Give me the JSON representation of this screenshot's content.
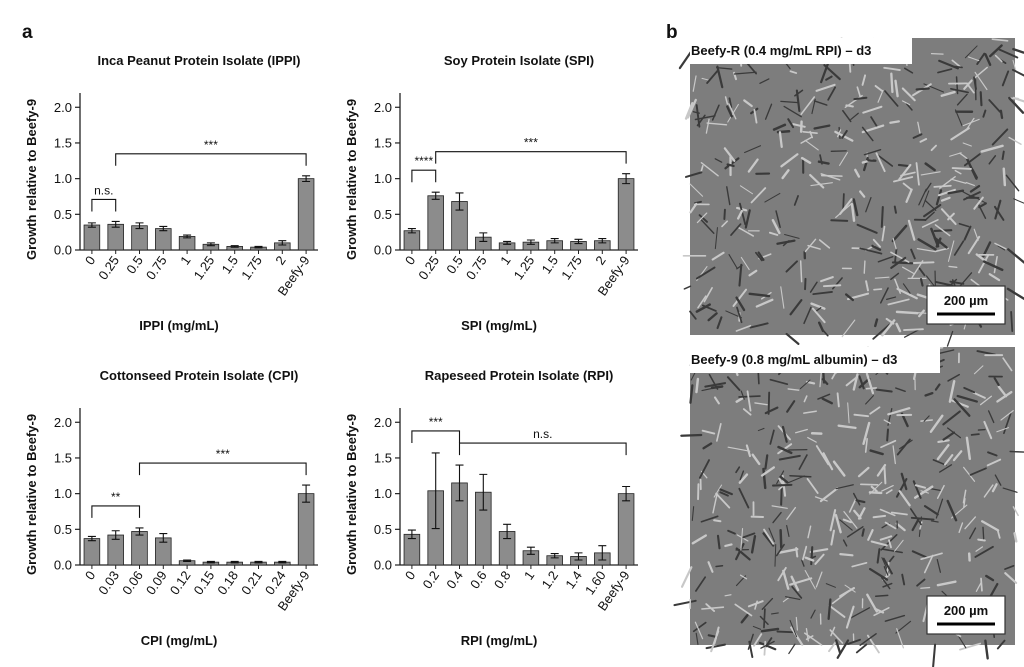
{
  "panels": {
    "a": "a",
    "b": "b"
  },
  "chart_data": [
    {
      "type": "bar",
      "title": "Inca Peanut Protein Isolate (IPPI)",
      "y_label": "Growth relative to Beefy-9",
      "x_label": "IPPI (mg/mL)",
      "categories": [
        "0",
        "0.25",
        "0.5",
        "0.75",
        "1",
        "1.25",
        "1.5",
        "1.75",
        "2",
        "Beefy-9"
      ],
      "values": [
        0.35,
        0.36,
        0.34,
        0.3,
        0.19,
        0.08,
        0.05,
        0.04,
        0.1,
        1.0
      ],
      "errors": [
        0.03,
        0.04,
        0.04,
        0.03,
        0.02,
        0.02,
        0.01,
        0.01,
        0.03,
        0.04
      ],
      "color": "#8c8c8c",
      "ylim": [
        0,
        2.2
      ],
      "yticks": [
        {
          "value": 0,
          "label": "0.0"
        },
        0.5,
        {
          "value": 1,
          "label": "1.0"
        },
        1.5,
        {
          "value": 2,
          "label": "2.0"
        }
      ],
      "annotations": [
        {
          "text": "n.s.",
          "from": "0",
          "to": "0.25"
        },
        {
          "text": "***",
          "from": "0.25",
          "to": "Beefy-9"
        }
      ]
    },
    {
      "type": "bar",
      "title": "Soy Protein Isolate (SPI)",
      "y_label": "Growth relative to Beefy-9",
      "x_label": "SPI (mg/mL)",
      "categories": [
        "0",
        "0.25",
        "0.5",
        "0.75",
        "1",
        "1.25",
        "1.5",
        "1.75",
        "2",
        "Beefy-9"
      ],
      "values": [
        0.27,
        0.76,
        0.68,
        0.18,
        0.1,
        0.11,
        0.13,
        0.12,
        0.13,
        1.0
      ],
      "errors": [
        0.03,
        0.05,
        0.12,
        0.06,
        0.02,
        0.03,
        0.03,
        0.03,
        0.03,
        0.07
      ],
      "color": "#8c8c8c",
      "ylim": [
        0,
        2.2
      ],
      "yticks": [
        {
          "value": 0,
          "label": "0.0"
        },
        0.5,
        {
          "value": 1,
          "label": "1.0"
        },
        1.5,
        {
          "value": 2,
          "label": "2.0"
        }
      ],
      "annotations": [
        {
          "text": "****",
          "from": "0",
          "to": "0.25"
        },
        {
          "text": "***",
          "from": "0.25",
          "to": "Beefy-9"
        }
      ]
    },
    {
      "type": "bar",
      "title": "Cottonseed Protein Isolate (CPI)",
      "y_label": "Growth relative to Beefy-9",
      "x_label": "CPI (mg/mL)",
      "categories": [
        "0",
        "0.03",
        "0.06",
        "0.09",
        "0.12",
        "0.15",
        "0.18",
        "0.21",
        "0.24",
        "Beefy-9"
      ],
      "values": [
        0.37,
        0.42,
        0.47,
        0.38,
        0.06,
        0.04,
        0.04,
        0.04,
        0.04,
        1.0
      ],
      "errors": [
        0.03,
        0.06,
        0.05,
        0.06,
        0.01,
        0.01,
        0.01,
        0.01,
        0.01,
        0.12
      ],
      "color": "#8c8c8c",
      "ylim": [
        0,
        2.2
      ],
      "yticks": [
        {
          "value": 0,
          "label": "0.0"
        },
        0.5,
        {
          "value": 1,
          "label": "1.0"
        },
        1.5,
        {
          "value": 2,
          "label": "2.0"
        }
      ],
      "annotations": [
        {
          "text": "**",
          "from": "0",
          "to": "0.06"
        },
        {
          "text": "***",
          "from": "0.06",
          "to": "Beefy-9"
        }
      ]
    },
    {
      "type": "bar",
      "title": "Rapeseed Protein Isolate (RPI)",
      "y_label": "Growth relative to Beefy-9",
      "x_label": "RPI (mg/mL)",
      "categories": [
        "0",
        "0.2",
        "0.4",
        "0.6",
        "0.8",
        "1",
        "1.2",
        "1.4",
        "1.60",
        "Beefy-9"
      ],
      "values": [
        0.43,
        1.04,
        1.15,
        1.02,
        0.47,
        0.2,
        0.13,
        0.12,
        0.17,
        1.0
      ],
      "errors": [
        0.06,
        0.53,
        0.25,
        0.25,
        0.1,
        0.05,
        0.03,
        0.05,
        0.1,
        0.1
      ],
      "color": "#8c8c8c",
      "ylim": [
        0,
        2.2
      ],
      "yticks": [
        {
          "value": 0,
          "label": "0.0"
        },
        0.5,
        {
          "value": 1,
          "label": "1.0"
        },
        1.5,
        {
          "value": 2,
          "label": "2.0"
        }
      ],
      "annotations": [
        {
          "text": "***",
          "from": "0",
          "to": "0.4"
        },
        {
          "text": "n.s.",
          "from": "0.4",
          "to": "Beefy-9"
        }
      ]
    }
  ],
  "images": [
    {
      "caption": "Beefy-R (0.4 mg/mL RPI) – d3",
      "scale_bar": "200 µm"
    },
    {
      "caption": "Beefy-9 (0.8 mg/mL albumin) – d3",
      "scale_bar": "200 µm"
    }
  ]
}
